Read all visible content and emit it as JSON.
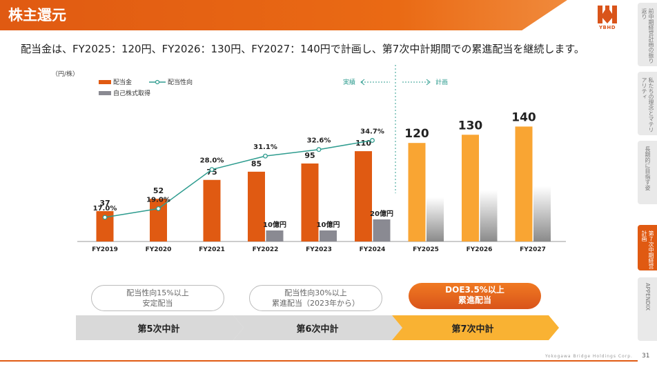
{
  "title": "株主還元",
  "headline": "配当金は、FY2025：120円、FY2026：130円、FY2027：140円で計画し、第7次中計期間での累進配当を継続します。",
  "logo_text": "YBHD",
  "side_tabs": [
    {
      "label": "前中期経営計画の振り返り",
      "active": false
    },
    {
      "label": "私たちの理念とマテリアリティ",
      "active": false
    },
    {
      "label": "長期的に目指す姿",
      "active": false
    },
    {
      "label": "第７次中期経営計画",
      "active": true
    },
    {
      "label": "APPENDIX",
      "active": false
    }
  ],
  "company": "Yokogawa Bridge Holdings Corp.",
  "page_number": "31",
  "colors": {
    "accent": "#e05a12",
    "dividend": "#e05a12",
    "dividend_plan": "#f9a533",
    "payout": "#2e9c8f",
    "buyback": "#8a8a92"
  },
  "chart_data": {
    "type": "bar",
    "unit_label": "（円/株）",
    "categories": [
      "FY2019",
      "FY2020",
      "FY2021",
      "FY2022",
      "FY2023",
      "FY2024",
      "FY2025",
      "FY2026",
      "FY2027"
    ],
    "legend": [
      {
        "key": "dividend",
        "label": "配当金",
        "style": "bar"
      },
      {
        "key": "payout",
        "label": "配当性向",
        "style": "line"
      },
      {
        "key": "buyback",
        "label": "自己株式取得",
        "style": "bar"
      }
    ],
    "series": [
      {
        "name": "配当金",
        "key": "dividend",
        "values": [
          37,
          52,
          75,
          85,
          95,
          110,
          120,
          130,
          140
        ],
        "labels": [
          "37",
          "52",
          "75",
          "85",
          "95",
          "110",
          "120",
          "130",
          "140"
        ]
      },
      {
        "name": "配当性向",
        "key": "payout",
        "values": [
          17.0,
          19.0,
          28.0,
          31.1,
          32.6,
          34.7,
          null,
          null,
          null
        ],
        "labels": [
          "17.0%",
          "19.0%",
          "28.0%",
          "31.1%",
          "32.6%",
          "34.7%",
          "",
          "",
          ""
        ]
      },
      {
        "name": "自己株式取得",
        "key": "buyback",
        "values": [
          null,
          null,
          null,
          10,
          10,
          20,
          null,
          null,
          null
        ],
        "labels": [
          "",
          "",
          "",
          "10億円",
          "10億円",
          "20億円",
          "",
          "",
          ""
        ]
      }
    ],
    "planned_buyback_placeholder": [
      false,
      false,
      false,
      false,
      false,
      false,
      true,
      true,
      true
    ],
    "divider_labels": {
      "actual": "実績",
      "plan": "計画"
    },
    "ylim": [
      0,
      150
    ]
  },
  "policies": [
    {
      "text_line1": "配当性向15%以上",
      "text_line2": "安定配当",
      "style": "outline"
    },
    {
      "text_line1": "配当性向30%以上",
      "text_line2": "累進配当（2023年から）",
      "style": "outline"
    },
    {
      "text_line1": "DOE3.5%以上",
      "text_line2": "累進配当",
      "style": "orange"
    }
  ],
  "phases": [
    "第5次中計",
    "第6次中計",
    "第7次中計"
  ]
}
